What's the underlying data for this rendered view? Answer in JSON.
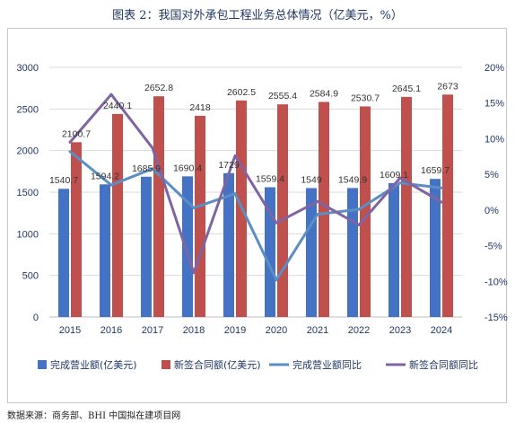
{
  "title": "图表 2：我国对外承包工程业务总体情况（亿美元，%）",
  "source": "数据来源：商务部、BHI 中国拟在建项目网",
  "colors": {
    "revenue_bar": "#4472c4",
    "contract_bar": "#c0504d",
    "revenue_yoy_line": "#5b8ec4",
    "contract_yoy_line": "#8064a2",
    "axis_text": "#1f3864",
    "grid": "#d9d9d9"
  },
  "chart_data": {
    "type": "bar",
    "categories": [
      "2015",
      "2016",
      "2017",
      "2018",
      "2019",
      "2020",
      "2021",
      "2022",
      "2023",
      "2024"
    ],
    "series": [
      {
        "name": "完成营业额(亿美元)",
        "type": "bar",
        "axis": "left",
        "values": [
          1540.7,
          1594.2,
          1685.9,
          1690.4,
          1729,
          1559.4,
          1549,
          1549.9,
          1609.1,
          1659.7
        ],
        "labels": [
          "1540.7",
          "1594.2",
          "1685.9",
          "1690.4",
          "1729",
          "1559.4",
          "1549",
          "1549.9",
          "1609.1",
          "1659.7"
        ]
      },
      {
        "name": "新签合同额(亿美元)",
        "type": "bar",
        "axis": "left",
        "values": [
          2100.7,
          2440.1,
          2652.8,
          2418,
          2602.5,
          2555.4,
          2584.9,
          2530.7,
          2645.1,
          2673
        ],
        "labels": [
          "2100.7",
          "2440.1",
          "2652.8",
          "2418",
          "2602.5",
          "2555.4",
          "2584.9",
          "2530.7",
          "2645.1",
          "2673"
        ]
      },
      {
        "name": "完成营业额同比",
        "type": "line",
        "axis": "right",
        "values": [
          8.2,
          3.5,
          5.8,
          0.3,
          2.3,
          -9.8,
          -0.6,
          0.1,
          3.8,
          3.1
        ]
      },
      {
        "name": "新签合同额同比",
        "type": "line",
        "axis": "right",
        "values": [
          9.5,
          16.2,
          8.7,
          -8.8,
          7.6,
          -1.8,
          1.2,
          -2.1,
          4.5,
          1.1
        ]
      }
    ],
    "y_left": {
      "ylim": [
        0,
        3000
      ],
      "ticks": [
        "0",
        "500",
        "1000",
        "1500",
        "2000",
        "2500",
        "3000"
      ]
    },
    "y_right": {
      "ylim": [
        -15,
        20
      ],
      "ticks": [
        "-15%",
        "-10%",
        "-5%",
        "0%",
        "5%",
        "10%",
        "15%",
        "20%"
      ]
    },
    "grid": true,
    "legend_position": "bottom"
  }
}
